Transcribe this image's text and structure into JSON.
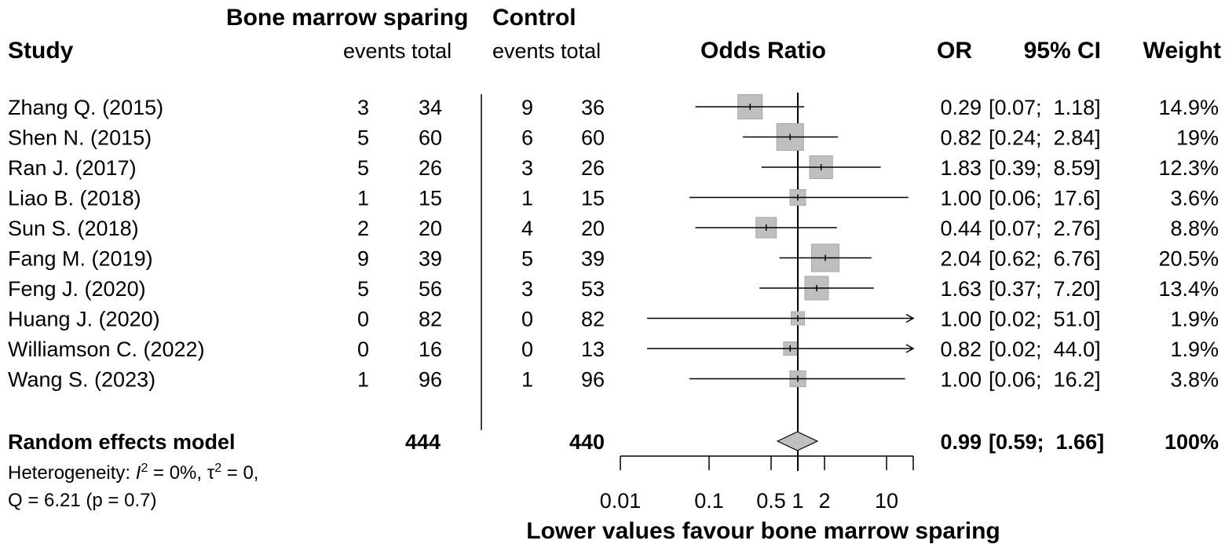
{
  "colors": {
    "box": "#bfbfbf",
    "box_stroke": "#a6a6a6",
    "diamond": "#c0c0c0",
    "line": "#000000"
  },
  "headers": {
    "group1_title": "Bone marrow sparing",
    "group2_title": "Control",
    "study": "Study",
    "events_total_1": "events total",
    "events_total_2": "events total",
    "odds_ratio": "Odds Ratio",
    "or": "OR",
    "ci": "95% CI",
    "weight": "Weight"
  },
  "studies": [
    {
      "name": "Zhang Q. (2015)",
      "e1": "3",
      "n1": "34",
      "e2": "9",
      "n2": "36",
      "or_text": "0.29",
      "ci_text": "[0.07;  1.18]",
      "weight_text": "14.9%"
    },
    {
      "name": "Shen N. (2015)",
      "e1": "5",
      "n1": "60",
      "e2": "6",
      "n2": "60",
      "or_text": "0.82",
      "ci_text": "[0.24;  2.84]",
      "weight_text": "19%"
    },
    {
      "name": "Ran J. (2017)",
      "e1": "5",
      "n1": "26",
      "e2": "3",
      "n2": "26",
      "or_text": "1.83",
      "ci_text": "[0.39;  8.59]",
      "weight_text": "12.3%"
    },
    {
      "name": "Liao B. (2018)",
      "e1": "1",
      "n1": "15",
      "e2": "1",
      "n2": "15",
      "or_text": "1.00",
      "ci_text": "[0.06;  17.6]",
      "weight_text": "3.6%"
    },
    {
      "name": "Sun S. (2018)",
      "e1": "2",
      "n1": "20",
      "e2": "4",
      "n2": "20",
      "or_text": "0.44",
      "ci_text": "[0.07;  2.76]",
      "weight_text": "8.8%"
    },
    {
      "name": "Fang M. (2019)",
      "e1": "9",
      "n1": "39",
      "e2": "5",
      "n2": "39",
      "or_text": "2.04",
      "ci_text": "[0.62;  6.76]",
      "weight_text": "20.5%"
    },
    {
      "name": "Feng J. (2020)",
      "e1": "5",
      "n1": "56",
      "e2": "3",
      "n2": "53",
      "or_text": "1.63",
      "ci_text": "[0.37;  7.20]",
      "weight_text": "13.4%"
    },
    {
      "name": "Huang J. (2020)",
      "e1": "0",
      "n1": "82",
      "e2": "0",
      "n2": "82",
      "or_text": "1.00",
      "ci_text": "[0.02;  51.0]",
      "weight_text": "1.9%"
    },
    {
      "name": "Williamson C. (2022)",
      "e1": "0",
      "n1": "16",
      "e2": "0",
      "n2": "13",
      "or_text": "0.82",
      "ci_text": "[0.02;  44.0]",
      "weight_text": "1.9%"
    },
    {
      "name": "Wang S. (2023)",
      "e1": "1",
      "n1": "96",
      "e2": "1",
      "n2": "96",
      "or_text": "1.00",
      "ci_text": "[0.06;  16.2]",
      "weight_text": "3.8%"
    }
  ],
  "summary": {
    "label": "Random effects model",
    "total1": "444",
    "total2": "440",
    "or_text": "0.99",
    "ci_text": "[0.59;  1.66]",
    "weight_text": "100%"
  },
  "heterogeneity": {
    "line1_prefix": "Heterogeneity: ",
    "i2_symbol": "I",
    "i2_sup": "2",
    "line1_mid": " = 0%, τ",
    "tau_sup": "2",
    "line1_suffix": " = 0,",
    "line2": "Q = 6.21 (p = 0.7)"
  },
  "axis_caption": "Lower values favour bone marrow sparing",
  "chart_data": {
    "type": "forest",
    "x_scale": "log",
    "xlim": [
      0.01,
      20
    ],
    "reference_line": 1,
    "ticks": [
      0.01,
      0.1,
      0.5,
      1,
      2,
      10
    ],
    "tick_labels": [
      "0.01",
      "0.1",
      "0.5",
      "1",
      "2",
      "10"
    ],
    "xlabel": "Lower values favour bone marrow sparing",
    "estimates": [
      {
        "or": 0.29,
        "lower": 0.07,
        "upper": 1.18,
        "weight": 14.9,
        "arrow_left": false,
        "arrow_right": false
      },
      {
        "or": 0.82,
        "lower": 0.24,
        "upper": 2.84,
        "weight": 19,
        "arrow_left": false,
        "arrow_right": false
      },
      {
        "or": 1.83,
        "lower": 0.39,
        "upper": 8.59,
        "weight": 12.3,
        "arrow_left": false,
        "arrow_right": false
      },
      {
        "or": 1.0,
        "lower": 0.06,
        "upper": 17.6,
        "weight": 3.6,
        "arrow_left": false,
        "arrow_right": false
      },
      {
        "or": 0.44,
        "lower": 0.07,
        "upper": 2.76,
        "weight": 8.8,
        "arrow_left": false,
        "arrow_right": false
      },
      {
        "or": 2.04,
        "lower": 0.62,
        "upper": 6.76,
        "weight": 20.5,
        "arrow_left": false,
        "arrow_right": false
      },
      {
        "or": 1.63,
        "lower": 0.37,
        "upper": 7.2,
        "weight": 13.4,
        "arrow_left": false,
        "arrow_right": false
      },
      {
        "or": 1.0,
        "lower": 0.02,
        "upper": 51.0,
        "weight": 1.9,
        "arrow_left": false,
        "arrow_right": true
      },
      {
        "or": 0.82,
        "lower": 0.02,
        "upper": 44.0,
        "weight": 1.9,
        "arrow_left": false,
        "arrow_right": true
      },
      {
        "or": 1.0,
        "lower": 0.06,
        "upper": 16.2,
        "weight": 3.8,
        "arrow_left": false,
        "arrow_right": false
      }
    ],
    "summary_estimate": {
      "or": 0.99,
      "lower": 0.59,
      "upper": 1.66,
      "weight": 100
    }
  }
}
